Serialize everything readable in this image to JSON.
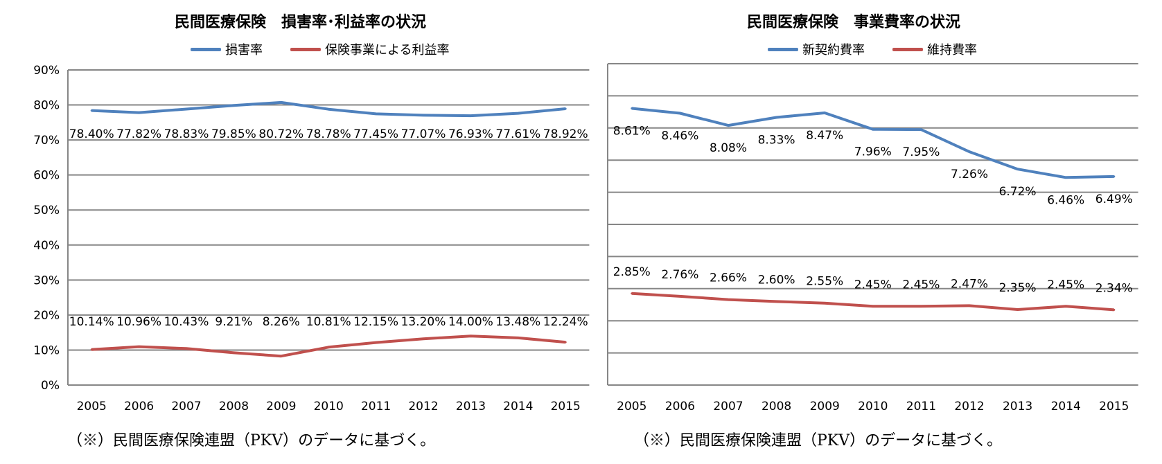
{
  "colors": {
    "blue": "#4f81bd",
    "red": "#c0504d",
    "grid": "#868686"
  },
  "chart_data": [
    {
      "type": "line",
      "title": "民間医療保険　損害率･利益率の状況",
      "categories": [
        "2005",
        "2006",
        "2007",
        "2008",
        "2009",
        "2010",
        "2011",
        "2012",
        "2013",
        "2014",
        "2015"
      ],
      "yticks": [
        "0%",
        "10%",
        "20%",
        "30%",
        "40%",
        "50%",
        "60%",
        "70%",
        "80%",
        "90%"
      ],
      "ylim": [
        0,
        90
      ],
      "xlabel": "",
      "ylabel": "",
      "grid": true,
      "legend_position": "top",
      "series": [
        {
          "name": "損害率",
          "color": "#4f81bd",
          "values": [
            78.4,
            77.82,
            78.83,
            79.85,
            80.72,
            78.78,
            77.45,
            77.07,
            76.93,
            77.61,
            78.92
          ],
          "labels": [
            "78.40%",
            "77.82%",
            "78.83%",
            "79.85%",
            "80.72%",
            "78.78%",
            "77.45%",
            "77.07%",
            "76.93%",
            "77.61%",
            "78.92%"
          ]
        },
        {
          "name": "保険事業による利益率",
          "color": "#c0504d",
          "values": [
            10.14,
            10.96,
            10.43,
            9.21,
            8.26,
            10.81,
            12.15,
            13.2,
            14.0,
            13.48,
            12.24
          ],
          "labels": [
            "10.14%",
            "10.96%",
            "10.43%",
            "9.21%",
            "8.26%",
            "10.81%",
            "12.15%",
            "13.20%",
            "14.00%",
            "13.48%",
            "12.24%"
          ]
        }
      ],
      "note": "（※）民間医療保険連盟（PKV）のデータに基づく。"
    },
    {
      "type": "line",
      "title": "民間医療保険　事業費率の状況",
      "categories": [
        "2005",
        "2006",
        "2007",
        "2008",
        "2009",
        "2010",
        "2011",
        "2012",
        "2013",
        "2014",
        "2015"
      ],
      "ylim": [
        0,
        10
      ],
      "xlabel": "",
      "ylabel": "",
      "grid": true,
      "legend_position": "top",
      "series": [
        {
          "name": "新契約費率",
          "color": "#4f81bd",
          "values": [
            8.61,
            8.46,
            8.08,
            8.33,
            8.47,
            7.96,
            7.95,
            7.26,
            6.72,
            6.46,
            6.49
          ],
          "labels": [
            "8.61%",
            "8.46%",
            "8.08%",
            "8.33%",
            "8.47%",
            "7.96%",
            "7.95%",
            "7.26%",
            "6.72%",
            "6.46%",
            "6.49%"
          ]
        },
        {
          "name": "維持費率",
          "color": "#c0504d",
          "values": [
            2.85,
            2.76,
            2.66,
            2.6,
            2.55,
            2.45,
            2.45,
            2.47,
            2.35,
            2.45,
            2.34
          ],
          "labels": [
            "2.85%",
            "2.76%",
            "2.66%",
            "2.60%",
            "2.55%",
            "2.45%",
            "2.45%",
            "2.47%",
            "2.35%",
            "2.45%",
            "2.34%"
          ]
        }
      ],
      "note": "（※）民間医療保険連盟（PKV）のデータに基づく。"
    }
  ]
}
